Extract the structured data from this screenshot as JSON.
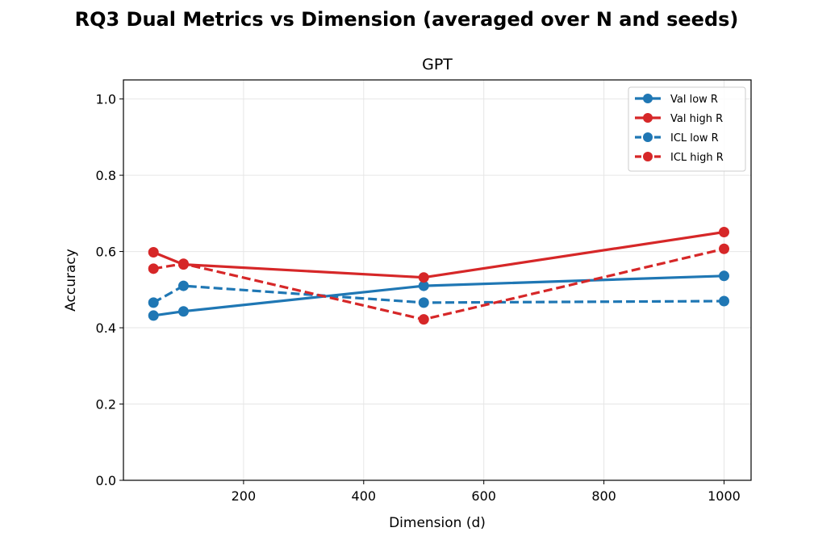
{
  "figure": {
    "suptitle": "RQ3 Dual Metrics vs Dimension (averaged over N and seeds)"
  },
  "chart_data": {
    "type": "line",
    "title": "GPT",
    "xlabel": "Dimension (d)",
    "ylabel": "Accuracy",
    "xlim": [
      0,
      1045
    ],
    "ylim": [
      0.0,
      1.05
    ],
    "xticks": [
      200,
      400,
      600,
      800,
      1000
    ],
    "yticks": [
      0.0,
      0.2,
      0.4,
      0.6,
      0.8,
      1.0
    ],
    "xtick_labels": [
      "200",
      "400",
      "600",
      "800",
      "1000"
    ],
    "ytick_labels": [
      "0.0",
      "0.2",
      "0.4",
      "0.6",
      "0.8",
      "1.0"
    ],
    "grid": true,
    "legend_position": "top-right",
    "x": [
      50,
      100,
      500,
      1000
    ],
    "series": [
      {
        "name": "Val low R",
        "color": "#1f77b4",
        "linestyle": "solid",
        "values": [
          0.432,
          0.443,
          0.51,
          0.536
        ]
      },
      {
        "name": "Val high R",
        "color": "#d62728",
        "linestyle": "solid",
        "values": [
          0.598,
          0.566,
          0.532,
          0.651
        ]
      },
      {
        "name": "ICL low R",
        "color": "#1f77b4",
        "linestyle": "dashed",
        "values": [
          0.466,
          0.51,
          0.466,
          0.47
        ]
      },
      {
        "name": "ICL high R",
        "color": "#d62728",
        "linestyle": "dashed",
        "values": [
          0.555,
          0.568,
          0.422,
          0.607
        ]
      }
    ]
  }
}
